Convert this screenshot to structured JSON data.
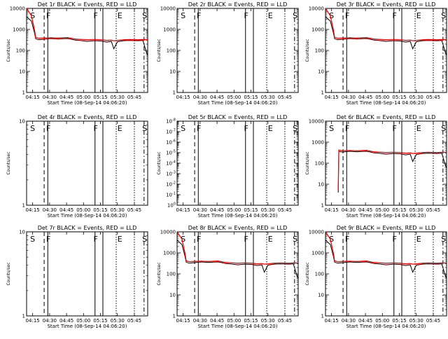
{
  "chart_data": [
    {
      "type": "line",
      "title": "Det 1r BLACK = Events, RED = LLD",
      "xlabel": "Start Time (08-Sep-14 04:06:20)",
      "ylabel": "Counts/sec",
      "yscale": "log",
      "yticks": [
        "1",
        "10",
        "100",
        "1000",
        "10000"
      ],
      "ylim": [
        1,
        10000
      ],
      "xticks": [
        "04:15",
        "04:30",
        "04:45",
        "05:00",
        "05:15",
        "05:30",
        "05:45"
      ],
      "markers": [
        {
          "label": "S"
        },
        {
          "label": "F"
        },
        {
          "label": "F"
        },
        {
          "label": "E"
        },
        {
          "label": "S"
        }
      ],
      "series": [
        {
          "color": "#000000",
          "x": [
            0,
            4,
            6.5,
            7.5,
            10,
            14,
            20,
            26,
            30,
            34,
            38,
            40,
            44,
            50,
            56,
            62,
            66,
            70,
            72,
            75,
            80,
            85,
            92,
            96,
            99,
            100
          ],
          "y": [
            4000,
            2500,
            700,
            360,
            320,
            340,
            370,
            350,
            360,
            370,
            330,
            310,
            300,
            270,
            290,
            280,
            250,
            270,
            120,
            260,
            290,
            300,
            290,
            300,
            80,
            60
          ]
        },
        {
          "color": "#ff0000",
          "x": [
            0,
            4,
            6.5,
            7.5,
            10,
            14,
            20,
            26,
            30,
            34,
            38,
            40,
            44,
            50,
            56,
            62,
            66,
            70,
            72,
            75,
            80,
            85,
            92,
            96,
            99,
            100
          ],
          "y": [
            10000,
            4500,
            1000,
            420,
            380,
            390,
            400,
            390,
            400,
            410,
            370,
            350,
            340,
            320,
            330,
            320,
            300,
            310,
            290,
            300,
            320,
            330,
            320,
            330,
            330,
            320
          ]
        }
      ]
    },
    {
      "type": "line",
      "title": "Det 2r BLACK = Events, RED = LLD",
      "xlabel": "Start Time (08-Sep-14 04:06:20)",
      "ylabel": "Counts/sec",
      "yscale": "log",
      "yticks": [
        "1",
        "10",
        "100",
        "1000",
        "10000"
      ],
      "ylim": [
        1,
        10000
      ],
      "xticks": [
        "04:15",
        "04:30",
        "04:45",
        "05:00",
        "05:15",
        "05:30",
        "05:45"
      ],
      "markers": [
        {
          "label": "S"
        },
        {
          "label": "F"
        },
        {
          "label": "F"
        },
        {
          "label": "E"
        },
        {
          "label": "S"
        }
      ],
      "series": []
    },
    {
      "type": "line",
      "title": "Det 3r BLACK = Events, RED = LLD",
      "xlabel": "Start Time (08-Sep-14 04:06:20)",
      "ylabel": "Counts/sec",
      "yscale": "log",
      "yticks": [
        "1",
        "10",
        "100",
        "1000",
        "10000"
      ],
      "ylim": [
        1,
        10000
      ],
      "xticks": [
        "04:15",
        "04:30",
        "04:45",
        "05:00",
        "05:15",
        "05:30",
        "05:45"
      ],
      "markers": [
        {
          "label": "S"
        },
        {
          "label": "F"
        },
        {
          "label": "F"
        },
        {
          "label": "E"
        },
        {
          "label": "S"
        }
      ],
      "series": [
        {
          "color": "#000000",
          "x": [
            0,
            4,
            6.5,
            7.5,
            10,
            14,
            20,
            26,
            30,
            34,
            38,
            40,
            44,
            50,
            56,
            62,
            66,
            70,
            72,
            75,
            80,
            85,
            92,
            96,
            99,
            100
          ],
          "y": [
            4000,
            2500,
            700,
            360,
            320,
            340,
            370,
            350,
            360,
            370,
            330,
            310,
            300,
            270,
            290,
            280,
            250,
            270,
            120,
            260,
            290,
            300,
            290,
            300,
            80,
            60
          ]
        },
        {
          "color": "#ff0000",
          "x": [
            0,
            4,
            6.5,
            7.5,
            10,
            14,
            20,
            26,
            30,
            34,
            38,
            40,
            44,
            50,
            56,
            62,
            66,
            70,
            72,
            75,
            80,
            85,
            92,
            96,
            99,
            100
          ],
          "y": [
            10000,
            4500,
            1000,
            420,
            380,
            390,
            400,
            390,
            400,
            410,
            370,
            350,
            340,
            320,
            330,
            320,
            300,
            310,
            290,
            300,
            320,
            330,
            320,
            330,
            330,
            320
          ]
        }
      ]
    },
    {
      "type": "line",
      "title": "Det 4r BLACK = Events, RED = LLD",
      "xlabel": "Start Time (08-Sep-14 04:06:20)",
      "ylabel": "Counts/sec",
      "yscale": "log",
      "yticks": [
        "1",
        "10"
      ],
      "ylim": [
        1,
        10
      ],
      "xticks": [
        "04:15",
        "04:30",
        "04:45",
        "05:00",
        "05:15",
        "05:30",
        "05:45"
      ],
      "markers": [
        {
          "label": "S"
        },
        {
          "label": "F"
        },
        {
          "label": "F"
        },
        {
          "label": "E"
        },
        {
          "label": "S"
        }
      ],
      "series": []
    },
    {
      "type": "line",
      "title": "Det 5r BLACK = Events, RED = LLD",
      "xlabel": "Start Time (08-Sep-14 04:06:20)",
      "ylabel": "Counts/sec",
      "yscale": "log",
      "yticks": [
        "10^0",
        "10^-1",
        "10^-2",
        "10^-3",
        "10^-4",
        "10^-5",
        "10^-6",
        "10^-7",
        "10^-8"
      ],
      "ylim": [
        1e-08,
        1
      ],
      "xticks": [
        "04:15",
        "04:30",
        "04:45",
        "05:00",
        "05:15",
        "05:30",
        "05:45"
      ],
      "markers": [
        {
          "label": "S"
        },
        {
          "label": "F"
        },
        {
          "label": "F"
        },
        {
          "label": "E"
        },
        {
          "label": "S"
        }
      ],
      "series": []
    },
    {
      "type": "line",
      "title": "Det 6r BLACK = Events, RED = LLD",
      "xlabel": "Start Time (08-Sep-14 04:06:20)",
      "ylabel": "Counts/sec",
      "yscale": "log",
      "yticks": [
        "1",
        "10",
        "100",
        "1000",
        "10000"
      ],
      "ylim": [
        1,
        10000
      ],
      "xticks": [
        "04:15",
        "04:30",
        "04:45",
        "05:00",
        "05:15",
        "05:30",
        "05:45"
      ],
      "markers": [
        {
          "label": "S"
        },
        {
          "label": "F"
        },
        {
          "label": "F"
        },
        {
          "label": "E"
        },
        {
          "label": "S"
        }
      ],
      "series": [
        {
          "color": "#000000",
          "x": [
            10.5,
            11,
            14,
            20,
            26,
            30,
            34,
            38,
            40,
            44,
            50,
            56,
            62,
            66,
            70,
            72,
            75,
            80,
            85,
            92,
            96,
            99,
            100
          ],
          "y": [
            4,
            360,
            340,
            370,
            350,
            360,
            370,
            330,
            310,
            300,
            270,
            290,
            280,
            250,
            270,
            120,
            260,
            290,
            300,
            290,
            300,
            80,
            60
          ]
        },
        {
          "color": "#ff0000",
          "x": [
            10.5,
            11,
            14,
            20,
            26,
            30,
            34,
            38,
            40,
            44,
            50,
            56,
            62,
            66,
            70,
            72,
            75,
            80,
            85,
            92,
            96,
            99,
            100
          ],
          "y": [
            5,
            420,
            390,
            400,
            390,
            400,
            410,
            370,
            350,
            340,
            320,
            330,
            320,
            300,
            310,
            290,
            300,
            320,
            330,
            320,
            330,
            330,
            320
          ]
        }
      ]
    },
    {
      "type": "line",
      "title": "Det 7r BLACK = Events, RED = LLD",
      "xlabel": "Start Time (08-Sep-14 04:06:20)",
      "ylabel": "Counts/sec",
      "yscale": "log",
      "yticks": [
        "1",
        "10"
      ],
      "ylim": [
        1,
        10
      ],
      "xticks": [
        "04:15",
        "04:30",
        "04:45",
        "05:00",
        "05:15",
        "05:30",
        "05:45"
      ],
      "markers": [
        {
          "label": "S"
        },
        {
          "label": "F"
        },
        {
          "label": "F"
        },
        {
          "label": "E"
        },
        {
          "label": "S"
        }
      ],
      "series": []
    },
    {
      "type": "line",
      "title": "Det 8r BLACK = Events, RED = LLD",
      "xlabel": "Start Time (08-Sep-14 04:06:20)",
      "ylabel": "Counts/sec",
      "yscale": "log",
      "yticks": [
        "1",
        "10",
        "100",
        "1000",
        "10000"
      ],
      "ylim": [
        1,
        10000
      ],
      "xticks": [
        "04:15",
        "04:30",
        "04:45",
        "05:00",
        "05:15",
        "05:30",
        "05:45"
      ],
      "markers": [
        {
          "label": "S"
        },
        {
          "label": "F"
        },
        {
          "label": "F"
        },
        {
          "label": "E"
        },
        {
          "label": "S"
        }
      ],
      "series": [
        {
          "color": "#000000",
          "x": [
            0,
            4,
            6.5,
            7.5,
            10,
            14,
            20,
            26,
            30,
            34,
            38,
            40,
            44,
            50,
            56,
            62,
            66,
            70,
            72,
            75,
            80,
            85,
            92,
            96,
            99,
            100
          ],
          "y": [
            4000,
            2500,
            700,
            360,
            320,
            340,
            370,
            350,
            360,
            370,
            330,
            310,
            300,
            270,
            290,
            280,
            250,
            270,
            120,
            260,
            290,
            300,
            290,
            300,
            80,
            60
          ]
        },
        {
          "color": "#ff0000",
          "x": [
            0,
            4,
            6.5,
            7.5,
            10,
            14,
            20,
            26,
            30,
            34,
            38,
            40,
            44,
            50,
            56,
            62,
            66,
            70,
            72,
            75,
            80,
            85,
            92,
            96,
            99,
            100
          ],
          "y": [
            10000,
            4500,
            1000,
            420,
            380,
            390,
            400,
            390,
            400,
            410,
            370,
            350,
            340,
            320,
            330,
            320,
            300,
            310,
            290,
            300,
            320,
            330,
            320,
            330,
            330,
            320
          ]
        }
      ]
    },
    {
      "type": "line",
      "title": "Det 9r BLACK = Events, RED = LLD",
      "xlabel": "Start Time (08-Sep-14 04:06:20)",
      "ylabel": "Counts/sec",
      "yscale": "log",
      "yticks": [
        "1",
        "10",
        "100",
        "1000",
        "10000"
      ],
      "ylim": [
        1,
        10000
      ],
      "xticks": [
        "04:15",
        "04:30",
        "04:45",
        "05:00",
        "05:15",
        "05:30",
        "05:45"
      ],
      "markers": [
        {
          "label": "S"
        },
        {
          "label": "F"
        },
        {
          "label": "F"
        },
        {
          "label": "E"
        },
        {
          "label": "S"
        }
      ],
      "series": [
        {
          "color": "#000000",
          "x": [
            0,
            4,
            6.5,
            7.5,
            10,
            14,
            20,
            26,
            30,
            34,
            38,
            40,
            44,
            50,
            56,
            62,
            66,
            70,
            72,
            75,
            80,
            85,
            92,
            96,
            99,
            100
          ],
          "y": [
            4000,
            2500,
            700,
            360,
            320,
            340,
            370,
            350,
            360,
            370,
            330,
            310,
            300,
            270,
            290,
            280,
            250,
            270,
            120,
            260,
            290,
            300,
            290,
            300,
            80,
            60
          ]
        },
        {
          "color": "#ff0000",
          "x": [
            0,
            4,
            6.5,
            7.5,
            10,
            14,
            20,
            26,
            30,
            34,
            38,
            40,
            44,
            50,
            56,
            62,
            66,
            70,
            72,
            75,
            80,
            85,
            92,
            96,
            99,
            100
          ],
          "y": [
            10000,
            4500,
            1000,
            420,
            380,
            390,
            400,
            390,
            400,
            410,
            370,
            350,
            340,
            320,
            330,
            320,
            300,
            310,
            290,
            300,
            320,
            330,
            320,
            330,
            330,
            320
          ]
        }
      ]
    }
  ]
}
